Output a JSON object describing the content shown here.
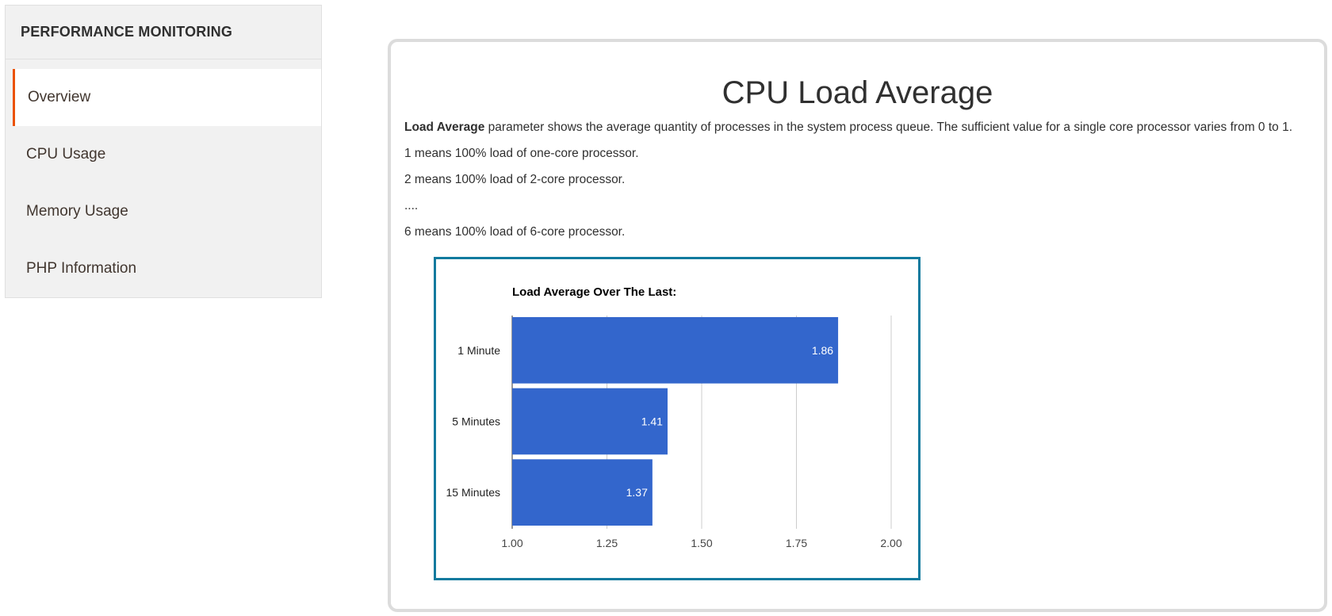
{
  "sidebar": {
    "title": "PERFORMANCE MONITORING",
    "items": [
      {
        "label": "Overview",
        "active": true
      },
      {
        "label": "CPU Usage",
        "active": false
      },
      {
        "label": "Memory Usage",
        "active": false
      },
      {
        "label": "PHP Information",
        "active": false
      }
    ]
  },
  "main": {
    "title": "CPU Load Average",
    "intro_bold": "Load Average",
    "intro_rest": " parameter shows the average quantity of processes in the system process queue. The sufficient value for a single core processor varies from 0 to 1.",
    "lines": [
      "1 means 100% load of one-core processor.",
      "2 means 100% load of 2-core processor.",
      "....",
      "6 means 100% load of 6-core processor."
    ]
  },
  "colors": {
    "accent": "#eb5202",
    "bar": "#3366cc",
    "frame": "#117a9e"
  },
  "chart_data": {
    "type": "bar",
    "orientation": "horizontal",
    "title": "Load Average Over The Last:",
    "categories": [
      "1 Minute",
      "5 Minutes",
      "15 Minutes"
    ],
    "values": [
      1.86,
      1.41,
      1.37
    ],
    "value_labels": [
      "1.86",
      "1.41",
      "1.37"
    ],
    "xlim": [
      1.0,
      2.0
    ],
    "xticks": [
      "1.00",
      "1.25",
      "1.50",
      "1.75",
      "2.00"
    ],
    "grid": true,
    "legend": "none"
  }
}
